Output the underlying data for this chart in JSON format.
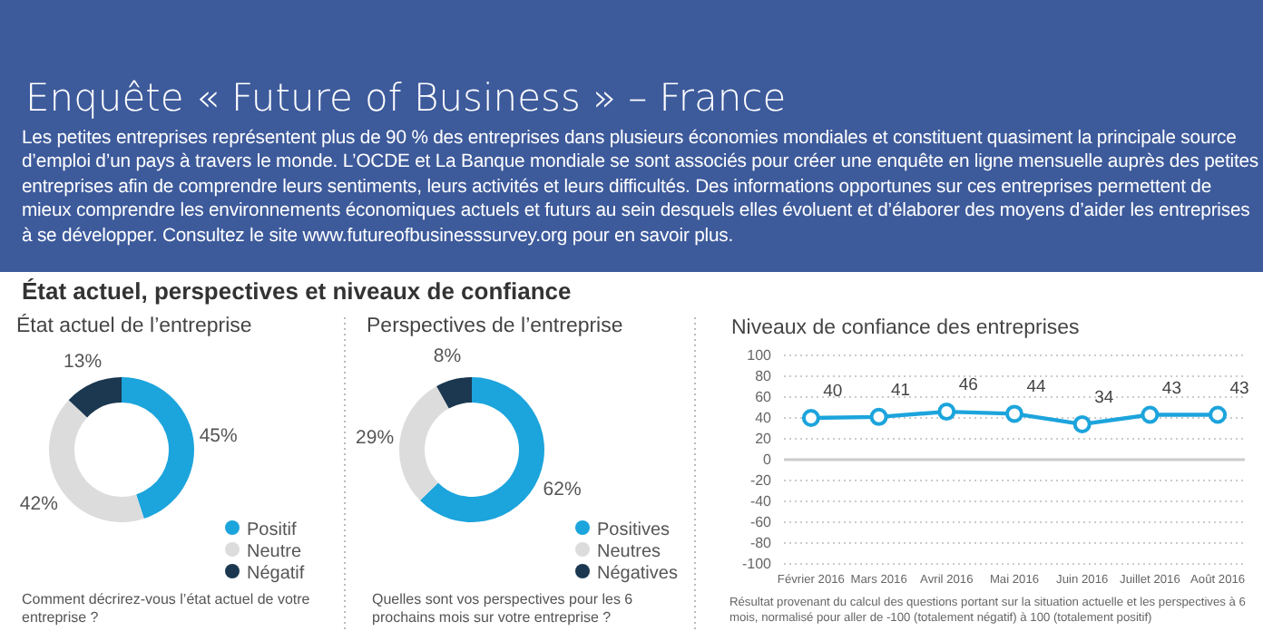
{
  "chart_data": [
    {
      "type": "other",
      "title": "Enquête « Future of Business » – France",
      "subtitle": "Les petites entreprises représentent plus de 90 % des entreprises dans plusieurs économies mondiales et constituent quasiment la principale source d’emploi d’un pays à travers le monde. L’OCDE et La Banque mondiale se sont associés pour créer une enquête en ligne mensuelle auprès des petites entreprises afin de comprendre leurs sentiments, leurs activités et leurs difficultés. Des informations opportunes sur ces entreprises permettent de mieux comprendre les environnements économiques actuels et futurs au sein desquels elles évoluent et d’élaborer des moyens d’aider les entreprises à se développer. Consultez le site www.futureofbusinesssurvey.org pour en savoir plus.",
      "annotations": [
        "État actuel, perspectives et niveaux de confiance"
      ]
    },
    {
      "type": "donut",
      "title": "État actuel de l’entreprise",
      "categories": [
        "Positif",
        "Neutre",
        "Négatif"
      ],
      "values": [
        45,
        42,
        13
      ],
      "value_labels": [
        "45%",
        "42%",
        "13%"
      ],
      "colors": [
        "#1ca4dc",
        "#dcdcdc",
        "#1b3850"
      ],
      "legend": "bottom right",
      "annotations": [
        "Comment décrirez-vous l’état actuel de votre entreprise ?"
      ]
    },
    {
      "type": "donut",
      "title": "Perspectives de l’entreprise",
      "categories": [
        "Positives",
        "Neutres",
        "Négatives"
      ],
      "values": [
        62,
        29,
        8
      ],
      "value_labels": [
        "62%",
        "29%",
        "8%"
      ],
      "colors": [
        "#1ca4dc",
        "#dcdcdc",
        "#1b3850"
      ],
      "legend": "bottom right",
      "annotations": [
        "Quelles sont vos perspectives pour les 6 prochains mois sur votre entreprise ?"
      ]
    },
    {
      "type": "line",
      "title": "Niveaux de confiance des entreprises",
      "categories": [
        "Février 2016",
        "Mars 2016",
        "Avril 2016",
        "Mai 2016",
        "Juin 2016",
        "Juillet 2016",
        "Août 2016"
      ],
      "series": [
        {
          "color": "#1ca4dc",
          "values": [
            40,
            41,
            46,
            44,
            34,
            43,
            43
          ]
        }
      ],
      "ylim": [
        -100,
        100
      ],
      "yticks": [
        -100,
        -80,
        -60,
        -40,
        -20,
        0,
        20,
        40,
        60,
        80,
        100
      ],
      "grid": "y",
      "marker": "circle",
      "data_labels": true,
      "annotations": [
        "Résultat provenant du calcul des questions portant sur la situation actuelle et les perspectives à 6 mois, normalisé pour aller de -100 (totalement négatif) à 100 (totalement positif)"
      ]
    }
  ]
}
